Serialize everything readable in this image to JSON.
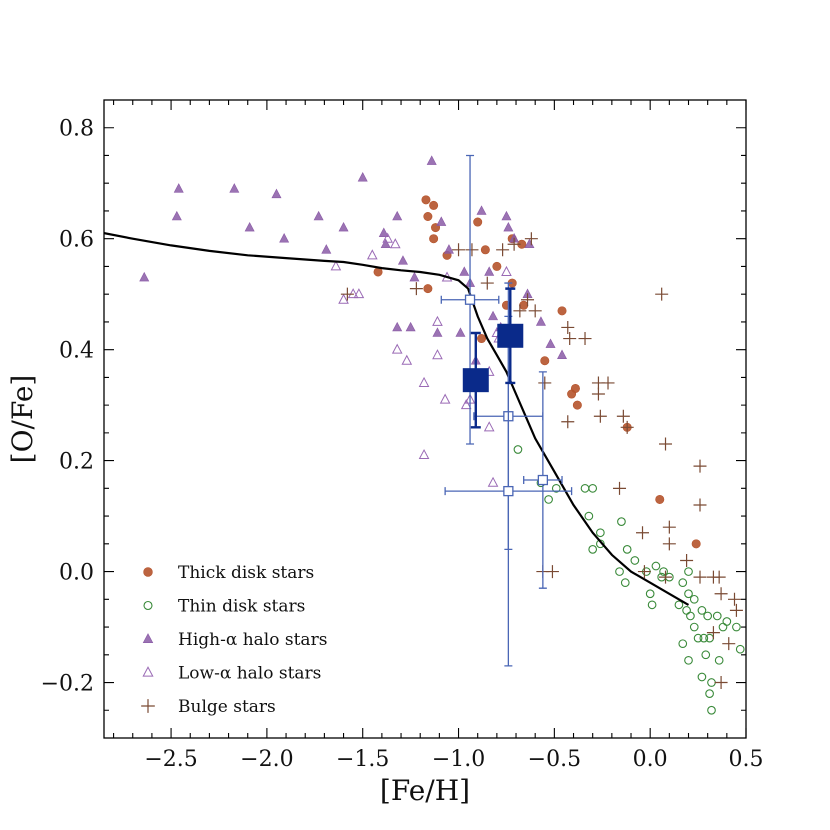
{
  "chart_data": {
    "type": "scatter",
    "xlabel": "[Fe/H]",
    "ylabel": "[O/Fe]",
    "xlim": [
      -2.85,
      0.5
    ],
    "ylim": [
      -0.3,
      0.85
    ],
    "x_ticks": [
      -2.5,
      -2.0,
      -1.5,
      -1.0,
      -0.5,
      0.0,
      0.5
    ],
    "x_tick_labels": [
      "−2.5",
      "−2.0",
      "−1.5",
      "−1.0",
      "−0.5",
      "0.0",
      "0.5"
    ],
    "y_ticks": [
      -0.2,
      0.0,
      0.2,
      0.4,
      0.6,
      0.8
    ],
    "y_tick_labels": [
      "−0.2",
      "0.0",
      "0.2",
      "0.4",
      "0.6",
      "0.8"
    ],
    "legend_position": "bottom-left",
    "colors": {
      "thick": "#b5532b",
      "thin": "#3a8a3a",
      "high_alpha": "#8a5aa6",
      "low_alpha": "#9a6ab5",
      "bulge": "#7a4a33",
      "model": "#000000",
      "obs_light": "#4a66b5",
      "obs_dark": "#0a2a8a"
    },
    "series": [
      {
        "name": "Thick disk stars",
        "marker": "filled-circle",
        "points": [
          [
            -1.17,
            0.67
          ],
          [
            -1.13,
            0.66
          ],
          [
            -1.16,
            0.64
          ],
          [
            -1.12,
            0.62
          ],
          [
            -1.13,
            0.6
          ],
          [
            -1.06,
            0.57
          ],
          [
            -0.9,
            0.63
          ],
          [
            -0.86,
            0.58
          ],
          [
            -0.8,
            0.55
          ],
          [
            -0.72,
            0.6
          ],
          [
            -0.67,
            0.59
          ],
          [
            -1.42,
            0.54
          ],
          [
            -1.16,
            0.51
          ],
          [
            -0.88,
            0.42
          ],
          [
            -0.75,
            0.48
          ],
          [
            -0.66,
            0.48
          ],
          [
            -0.72,
            0.52
          ],
          [
            -0.46,
            0.47
          ],
          [
            -0.55,
            0.38
          ],
          [
            -0.39,
            0.33
          ],
          [
            -0.41,
            0.32
          ],
          [
            -0.38,
            0.3
          ],
          [
            -0.12,
            0.26
          ],
          [
            0.05,
            0.13
          ],
          [
            0.24,
            0.05
          ]
        ]
      },
      {
        "name": "Thin disk stars",
        "marker": "open-circle",
        "points": [
          [
            -0.69,
            0.22
          ],
          [
            -0.57,
            0.16
          ],
          [
            -0.53,
            0.13
          ],
          [
            -0.49,
            0.15
          ],
          [
            -0.34,
            0.15
          ],
          [
            -0.3,
            0.15
          ],
          [
            -0.32,
            0.1
          ],
          [
            -0.26,
            0.07
          ],
          [
            -0.3,
            0.04
          ],
          [
            -0.26,
            0.05
          ],
          [
            -0.15,
            0.09
          ],
          [
            -0.12,
            0.04
          ],
          [
            -0.08,
            0.02
          ],
          [
            -0.02,
            0.0
          ],
          [
            0.03,
            0.01
          ],
          [
            0.06,
            -0.01
          ],
          [
            -0.16,
            0.0
          ],
          [
            -0.13,
            -0.02
          ],
          [
            0.0,
            -0.04
          ],
          [
            0.01,
            -0.06
          ],
          [
            0.07,
            0.0
          ],
          [
            0.1,
            -0.01
          ],
          [
            0.17,
            -0.02
          ],
          [
            0.2,
            -0.04
          ],
          [
            0.15,
            -0.06
          ],
          [
            0.19,
            -0.07
          ],
          [
            0.21,
            -0.08
          ],
          [
            0.23,
            -0.1
          ],
          [
            0.27,
            -0.07
          ],
          [
            0.3,
            -0.08
          ],
          [
            0.31,
            -0.12
          ],
          [
            0.25,
            -0.12
          ],
          [
            0.2,
            -0.16
          ],
          [
            0.17,
            -0.13
          ],
          [
            0.29,
            -0.15
          ],
          [
            0.27,
            -0.19
          ],
          [
            0.32,
            -0.2
          ],
          [
            0.31,
            -0.22
          ],
          [
            0.32,
            -0.25
          ],
          [
            0.38,
            -0.1
          ],
          [
            0.4,
            -0.09
          ],
          [
            0.45,
            -0.1
          ],
          [
            0.36,
            -0.16
          ],
          [
            0.47,
            -0.14
          ],
          [
            0.2,
            0.0
          ],
          [
            0.23,
            -0.05
          ],
          [
            0.28,
            -0.12
          ],
          [
            0.35,
            -0.08
          ]
        ]
      },
      {
        "name": "High-α halo stars",
        "marker": "filled-triangle",
        "points": [
          [
            -2.64,
            0.53
          ],
          [
            -2.46,
            0.69
          ],
          [
            -2.47,
            0.64
          ],
          [
            -2.17,
            0.69
          ],
          [
            -2.09,
            0.62
          ],
          [
            -1.95,
            0.68
          ],
          [
            -1.91,
            0.6
          ],
          [
            -1.73,
            0.64
          ],
          [
            -1.69,
            0.58
          ],
          [
            -1.6,
            0.62
          ],
          [
            -1.5,
            0.71
          ],
          [
            -1.39,
            0.61
          ],
          [
            -1.38,
            0.59
          ],
          [
            -1.32,
            0.64
          ],
          [
            -1.29,
            0.56
          ],
          [
            -1.23,
            0.53
          ],
          [
            -1.14,
            0.74
          ],
          [
            -1.09,
            0.63
          ],
          [
            -1.05,
            0.58
          ],
          [
            -1.32,
            0.44
          ],
          [
            -1.25,
            0.44
          ],
          [
            -1.11,
            0.43
          ],
          [
            -0.97,
            0.54
          ],
          [
            -0.94,
            0.52
          ],
          [
            -0.88,
            0.65
          ],
          [
            -0.84,
            0.54
          ],
          [
            -0.82,
            0.46
          ],
          [
            -0.78,
            0.44
          ],
          [
            -0.75,
            0.64
          ],
          [
            -0.74,
            0.62
          ],
          [
            -0.71,
            0.6
          ],
          [
            -0.63,
            0.59
          ],
          [
            -0.64,
            0.5
          ],
          [
            -0.57,
            0.45
          ],
          [
            -0.52,
            0.41
          ],
          [
            -0.46,
            0.39
          ],
          [
            -0.99,
            0.43
          ],
          [
            -0.91,
            0.38
          ]
        ]
      },
      {
        "name": "Low-α halo stars",
        "marker": "open-triangle",
        "points": [
          [
            -1.37,
            0.6
          ],
          [
            -1.52,
            0.5
          ],
          [
            -1.55,
            0.5
          ],
          [
            -1.6,
            0.49
          ],
          [
            -1.64,
            0.55
          ],
          [
            -1.45,
            0.57
          ],
          [
            -1.33,
            0.59
          ],
          [
            -1.32,
            0.4
          ],
          [
            -1.27,
            0.38
          ],
          [
            -1.18,
            0.34
          ],
          [
            -1.11,
            0.45
          ],
          [
            -1.11,
            0.39
          ],
          [
            -1.06,
            0.53
          ],
          [
            -1.07,
            0.31
          ],
          [
            -1.18,
            0.21
          ],
          [
            -0.96,
            0.3
          ],
          [
            -0.94,
            0.31
          ],
          [
            -0.84,
            0.26
          ],
          [
            -0.82,
            0.16
          ],
          [
            -0.84,
            0.36
          ],
          [
            -0.8,
            0.43
          ],
          [
            -0.79,
            0.42
          ],
          [
            -0.75,
            0.54
          ]
        ]
      },
      {
        "name": "Bulge stars",
        "marker": "plus",
        "points": [
          [
            -1.58,
            0.5
          ],
          [
            -1.22,
            0.51
          ],
          [
            -1.0,
            0.58
          ],
          [
            -0.77,
            0.58
          ],
          [
            -0.71,
            0.59
          ],
          [
            -0.62,
            0.6
          ],
          [
            -0.64,
            0.49
          ],
          [
            -0.68,
            0.47
          ],
          [
            -0.6,
            0.47
          ],
          [
            -0.85,
            0.52
          ],
          [
            -0.93,
            0.58
          ],
          [
            -0.43,
            0.44
          ],
          [
            -0.42,
            0.42
          ],
          [
            -0.34,
            0.42
          ],
          [
            -0.27,
            0.34
          ],
          [
            -0.22,
            0.34
          ],
          [
            -0.27,
            0.32
          ],
          [
            -0.43,
            0.27
          ],
          [
            -0.26,
            0.28
          ],
          [
            -0.14,
            0.28
          ],
          [
            -0.55,
            0.34
          ],
          [
            -0.12,
            0.26
          ],
          [
            0.06,
            0.5
          ],
          [
            0.08,
            0.23
          ],
          [
            0.26,
            0.19
          ],
          [
            -0.16,
            0.15
          ],
          [
            -0.04,
            0.07
          ],
          [
            0.1,
            0.08
          ],
          [
            0.1,
            0.05
          ],
          [
            0.26,
            0.12
          ],
          [
            0.19,
            0.02
          ],
          [
            -0.56,
            0.0
          ],
          [
            -0.51,
            0.0
          ],
          [
            -0.03,
            0.0
          ],
          [
            0.08,
            -0.01
          ],
          [
            0.26,
            -0.01
          ],
          [
            0.33,
            -0.01
          ],
          [
            0.36,
            -0.01
          ],
          [
            0.37,
            -0.04
          ],
          [
            0.33,
            -0.11
          ],
          [
            0.44,
            -0.05
          ],
          [
            0.45,
            -0.07
          ],
          [
            0.41,
            -0.13
          ],
          [
            0.37,
            -0.2
          ]
        ]
      }
    ],
    "observations": [
      {
        "style": "light",
        "x": -0.94,
        "y": 0.49,
        "xerr": 0.15,
        "yerr": 0.26
      },
      {
        "style": "light",
        "x": -0.74,
        "y": 0.28,
        "xerr": 0.18,
        "yerr": 0.24
      },
      {
        "style": "light",
        "x": -0.74,
        "y": 0.145,
        "xerr": 0.33,
        "yerr": 0.315
      },
      {
        "style": "light",
        "x": -0.56,
        "y": 0.165,
        "xerr": 0.1,
        "yerr": 0.195
      },
      {
        "style": "dark",
        "x": -0.91,
        "y": 0.345,
        "xerr": 0.0,
        "yerr": 0.085
      },
      {
        "style": "dark",
        "x": -0.73,
        "y": 0.425,
        "xerr": 0.0,
        "yerr": 0.085
      }
    ],
    "model_curve": [
      [
        -2.85,
        0.61
      ],
      [
        -2.7,
        0.6
      ],
      [
        -2.5,
        0.588
      ],
      [
        -2.3,
        0.578
      ],
      [
        -2.1,
        0.57
      ],
      [
        -1.9,
        0.565
      ],
      [
        -1.7,
        0.56
      ],
      [
        -1.6,
        0.558
      ],
      [
        -1.5,
        0.553
      ],
      [
        -1.4,
        0.547
      ],
      [
        -1.3,
        0.543
      ],
      [
        -1.2,
        0.54
      ],
      [
        -1.1,
        0.535
      ],
      [
        -1.0,
        0.525
      ],
      [
        -0.95,
        0.51
      ],
      [
        -0.9,
        0.46
      ],
      [
        -0.85,
        0.42
      ],
      [
        -0.8,
        0.39
      ],
      [
        -0.75,
        0.36
      ],
      [
        -0.7,
        0.32
      ],
      [
        -0.65,
        0.28
      ],
      [
        -0.6,
        0.24
      ],
      [
        -0.5,
        0.18
      ],
      [
        -0.4,
        0.12
      ],
      [
        -0.3,
        0.07
      ],
      [
        -0.2,
        0.03
      ],
      [
        -0.1,
        0.0
      ],
      [
        0.0,
        -0.02
      ],
      [
        0.1,
        -0.04
      ],
      [
        0.2,
        -0.06
      ]
    ]
  },
  "legend": [
    {
      "label": "Thick disk stars",
      "marker": "filled-circle",
      "color": "#b5532b"
    },
    {
      "label": "Thin disk stars",
      "marker": "open-circle",
      "color": "#3a8a3a"
    },
    {
      "label": "High-α halo stars",
      "marker": "filled-triangle",
      "color": "#8a5aa6"
    },
    {
      "label": "Low-α halo stars",
      "marker": "open-triangle",
      "color": "#9a6ab5"
    },
    {
      "label": "Bulge stars",
      "marker": "plus",
      "color": "#7a4a33"
    }
  ]
}
